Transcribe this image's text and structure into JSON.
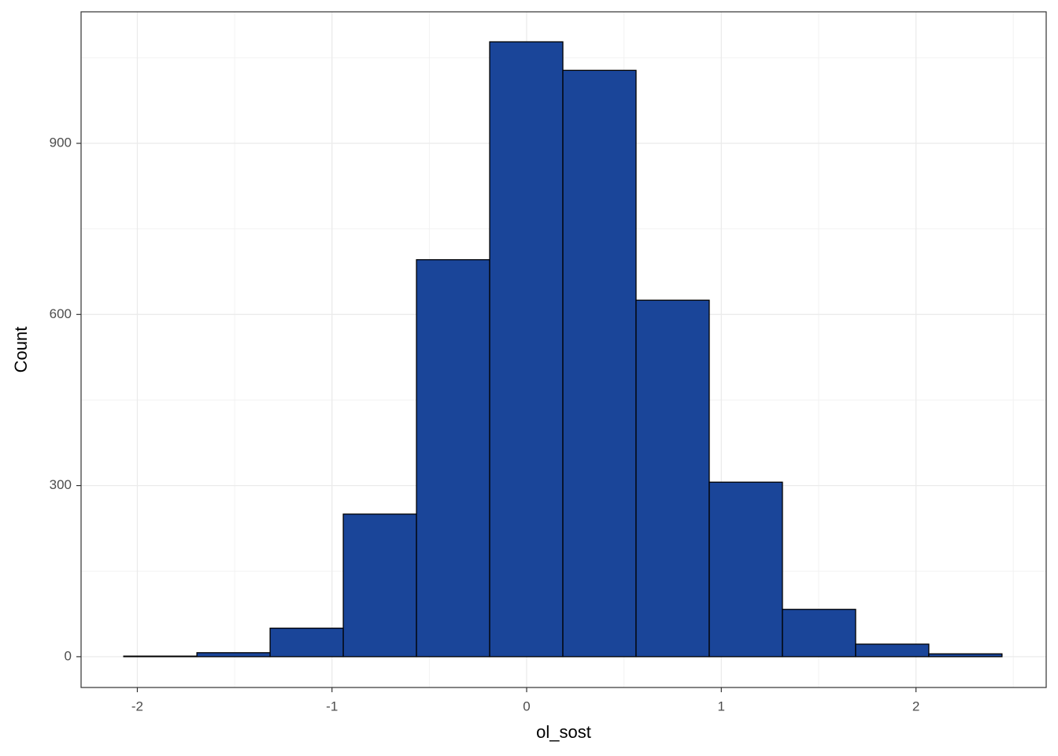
{
  "chart_data": {
    "type": "histogram",
    "x_label": "ol_sost",
    "y_label": "Count",
    "bins": [
      -2.07,
      -1.694,
      -1.318,
      -0.942,
      -0.566,
      -0.19,
      0.186,
      0.562,
      0.938,
      1.314,
      1.69,
      2.066,
      2.442
    ],
    "values": [
      1,
      7,
      50,
      250,
      696,
      1078,
      1028,
      625,
      306,
      83,
      22,
      5
    ],
    "color": "#1a4599",
    "xlim": [
      -2.289,
      2.669
    ],
    "ylim": [
      -54,
      1130.6
    ],
    "xticks": [
      -2,
      -1,
      0,
      1,
      2
    ],
    "yticks": [
      0,
      300,
      600,
      900
    ],
    "grid": true,
    "minor_grid": true
  }
}
